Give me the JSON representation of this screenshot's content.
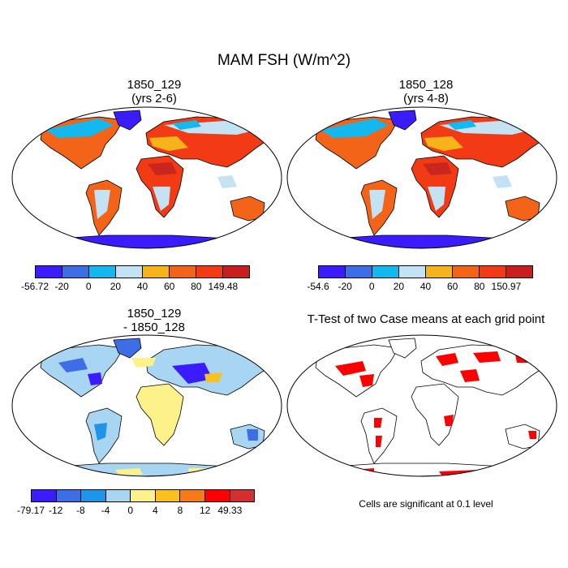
{
  "title": "MAM FSH (W/m^2)",
  "panels": {
    "p1": {
      "line1": "1850_129",
      "line2": "(yrs 2-6)"
    },
    "p2": {
      "line1": "1850_128",
      "line2": "(yrs 4-8)"
    },
    "p3": {
      "line1": "1850_129",
      "line2": "- 1850_128"
    },
    "p4": {
      "line1": "T-Test of two Case means at each grid point"
    }
  },
  "colorbars": {
    "cb1": {
      "colors": [
        "#3a1cff",
        "#3d6ee6",
        "#12b8ee",
        "#c3e3f4",
        "#f6b31a",
        "#f36419",
        "#f23a15",
        "#c81e1e"
      ],
      "labels": [
        "-56.72",
        "-20",
        "0",
        "20",
        "40",
        "60",
        "80",
        "149.48"
      ]
    },
    "cb2": {
      "colors": [
        "#3a1cff",
        "#3d6ee6",
        "#12b8ee",
        "#c3e3f4",
        "#f6b31a",
        "#f36419",
        "#f23a15",
        "#c81e1e"
      ],
      "labels": [
        "-54.6",
        "-20",
        "0",
        "20",
        "40",
        "60",
        "80",
        "150.97"
      ]
    },
    "cb3": {
      "colors": [
        "#3a1cff",
        "#3d6ee6",
        "#1f94e8",
        "#a8d6f2",
        "#fdf18a",
        "#f8c11d",
        "#f6791a",
        "#ff0000",
        "#d32f2f"
      ],
      "labels": [
        "-79.17",
        "-12",
        "-8",
        "-4",
        "0",
        "4",
        "8",
        "12",
        "49.33"
      ]
    }
  },
  "note": "Cells are significant at 0.1 level",
  "colors": {
    "significant": "#ff0000",
    "coast": "#000000"
  }
}
